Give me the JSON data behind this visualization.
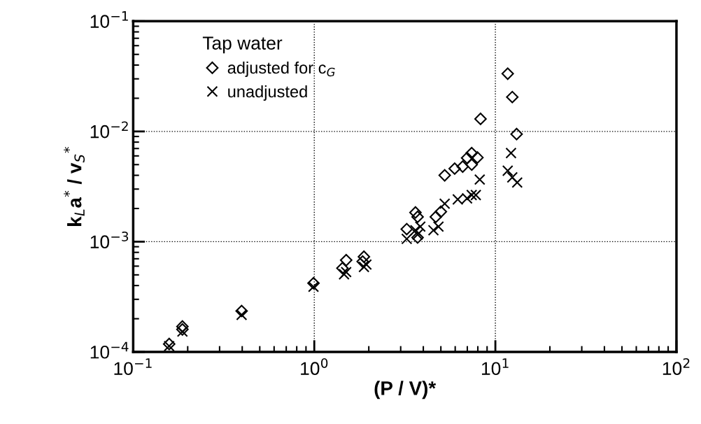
{
  "chart_data": {
    "type": "scatter",
    "xlabel": "(P / V)*",
    "ylabel": "k$_{L}$a$^{*}$ / v$_{S}$$^{*}$",
    "legend_title": "Tap water",
    "legend": "top left",
    "log": "xy",
    "grid": true,
    "xlim": [
      0.1,
      100
    ],
    "ylim": [
      0.0001,
      0.1
    ],
    "xticks": [
      {
        "value": 0.1,
        "label": "10$^{−1}$"
      },
      {
        "value": 1,
        "label": "10$^{0}$"
      },
      {
        "value": 10,
        "label": "10$^{1}$"
      },
      {
        "value": 100,
        "label": "10$^{2}$"
      }
    ],
    "yticks": [
      {
        "value": 0.0001,
        "label": "10$^{−4}$"
      },
      {
        "value": 0.001,
        "label": "10$^{−3}$"
      },
      {
        "value": 0.01,
        "label": "10$^{−2}$"
      },
      {
        "value": 0.1,
        "label": "10$^{−1}$"
      }
    ],
    "series": [
      {
        "name": "adjusted for c$_{G}$",
        "color": "#000000",
        "marker": "diamond",
        "x": [
          0.158,
          0.187,
          0.187,
          0.397,
          0.99,
          1.5,
          1.43,
          1.88,
          1.85,
          3.24,
          3.62,
          3.72,
          3.72,
          4.69,
          5.0,
          5.25,
          5.96,
          6.6,
          6.98,
          7.4,
          7.4,
          7.96,
          8.28,
          11.7,
          12.4,
          13.1
        ],
        "values": [
          0.000118,
          0.00017,
          0.00016,
          0.000235,
          0.00042,
          0.00068,
          0.000575,
          0.00073,
          0.00066,
          0.0013,
          0.00184,
          0.00168,
          0.00109,
          0.00168,
          0.00187,
          0.004,
          0.0046,
          0.0048,
          0.00575,
          0.00636,
          0.005,
          0.0058,
          0.013,
          0.0334,
          0.0205,
          0.00946
        ]
      },
      {
        "name": "unadjusted",
        "color": "#000000",
        "marker": "cross",
        "x": [
          0.158,
          0.187,
          0.397,
          0.99,
          1.46,
          1.5,
          1.88,
          1.94,
          3.24,
          3.62,
          3.85,
          3.72,
          4.55,
          4.85,
          5.25,
          6.2,
          6.98,
          7.4,
          7.8,
          8.2,
          11.7,
          12.2,
          12.4,
          13.2
        ],
        "values": [
          0.000113,
          0.000153,
          0.000217,
          0.00039,
          0.000506,
          0.00053,
          0.00059,
          0.00062,
          0.00106,
          0.00127,
          0.00137,
          0.00116,
          0.00127,
          0.00137,
          0.00221,
          0.00242,
          0.00247,
          0.00265,
          0.00265,
          0.00366,
          0.0044,
          0.00637,
          0.00383,
          0.00344
        ]
      }
    ]
  }
}
